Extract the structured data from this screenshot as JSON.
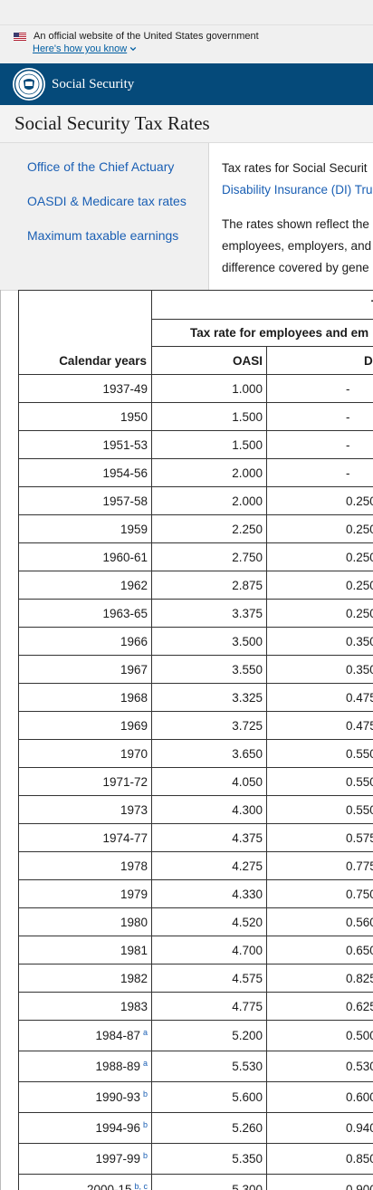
{
  "gov_banner": {
    "text": "An official website of the United States government",
    "link": "Here's how you know"
  },
  "header": {
    "brand": "Social Security"
  },
  "page": {
    "title": "Social Security Tax Rates"
  },
  "sidenav": [
    {
      "label": "Office of the Chief Actuary"
    },
    {
      "label": "OASDI & Medicare tax rates"
    },
    {
      "label": "Maximum taxable earnings"
    }
  ],
  "intro": {
    "line1": "Tax rates for Social Securit",
    "line2": "Disability Insurance (DI) Tru",
    "line3": "The rates shown reflect the",
    "line4": "employees, employers, and",
    "line5": "difference covered by gene"
  },
  "table": {
    "header_top": "T",
    "header_mid": "Tax rate for employees and em",
    "col_year": "Calendar years",
    "col_oasi": "OASI",
    "col_di": "D",
    "rows": [
      {
        "year": "1937-49",
        "note": "",
        "oasi": "1.000",
        "di": "-"
      },
      {
        "year": "1950",
        "note": "",
        "oasi": "1.500",
        "di": "-"
      },
      {
        "year": "1951-53",
        "note": "",
        "oasi": "1.500",
        "di": "-"
      },
      {
        "year": "1954-56",
        "note": "",
        "oasi": "2.000",
        "di": "-"
      },
      {
        "year": "1957-58",
        "note": "",
        "oasi": "2.000",
        "di": "0.250"
      },
      {
        "year": "1959",
        "note": "",
        "oasi": "2.250",
        "di": "0.250"
      },
      {
        "year": "1960-61",
        "note": "",
        "oasi": "2.750",
        "di": "0.250"
      },
      {
        "year": "1962",
        "note": "",
        "oasi": "2.875",
        "di": "0.250"
      },
      {
        "year": "1963-65",
        "note": "",
        "oasi": "3.375",
        "di": "0.250"
      },
      {
        "year": "1966",
        "note": "",
        "oasi": "3.500",
        "di": "0.350"
      },
      {
        "year": "1967",
        "note": "",
        "oasi": "3.550",
        "di": "0.350"
      },
      {
        "year": "1968",
        "note": "",
        "oasi": "3.325",
        "di": "0.475"
      },
      {
        "year": "1969",
        "note": "",
        "oasi": "3.725",
        "di": "0.475"
      },
      {
        "year": "1970",
        "note": "",
        "oasi": "3.650",
        "di": "0.550"
      },
      {
        "year": "1971-72",
        "note": "",
        "oasi": "4.050",
        "di": "0.550"
      },
      {
        "year": "1973",
        "note": "",
        "oasi": "4.300",
        "di": "0.550"
      },
      {
        "year": "1974-77",
        "note": "",
        "oasi": "4.375",
        "di": "0.575"
      },
      {
        "year": "1978",
        "note": "",
        "oasi": "4.275",
        "di": "0.775"
      },
      {
        "year": "1979",
        "note": "",
        "oasi": "4.330",
        "di": "0.750"
      },
      {
        "year": "1980",
        "note": "",
        "oasi": "4.520",
        "di": "0.560"
      },
      {
        "year": "1981",
        "note": "",
        "oasi": "4.700",
        "di": "0.650"
      },
      {
        "year": "1982",
        "note": "",
        "oasi": "4.575",
        "di": "0.825"
      },
      {
        "year": "1983",
        "note": "",
        "oasi": "4.775",
        "di": "0.625"
      },
      {
        "year": "1984-87",
        "note": "a",
        "oasi": "5.200",
        "di": "0.500"
      },
      {
        "year": "1988-89",
        "note": "a",
        "oasi": "5.530",
        "di": "0.530"
      },
      {
        "year": "1990-93",
        "note": "b",
        "oasi": "5.600",
        "di": "0.600"
      },
      {
        "year": "1994-96",
        "note": "b",
        "oasi": "5.260",
        "di": "0.940"
      },
      {
        "year": "1997-99",
        "note": "b",
        "oasi": "5.350",
        "di": "0.850"
      },
      {
        "year": "2000-15",
        "note": "b, c",
        "oasi": "5.300",
        "di": "0.900"
      }
    ]
  }
}
